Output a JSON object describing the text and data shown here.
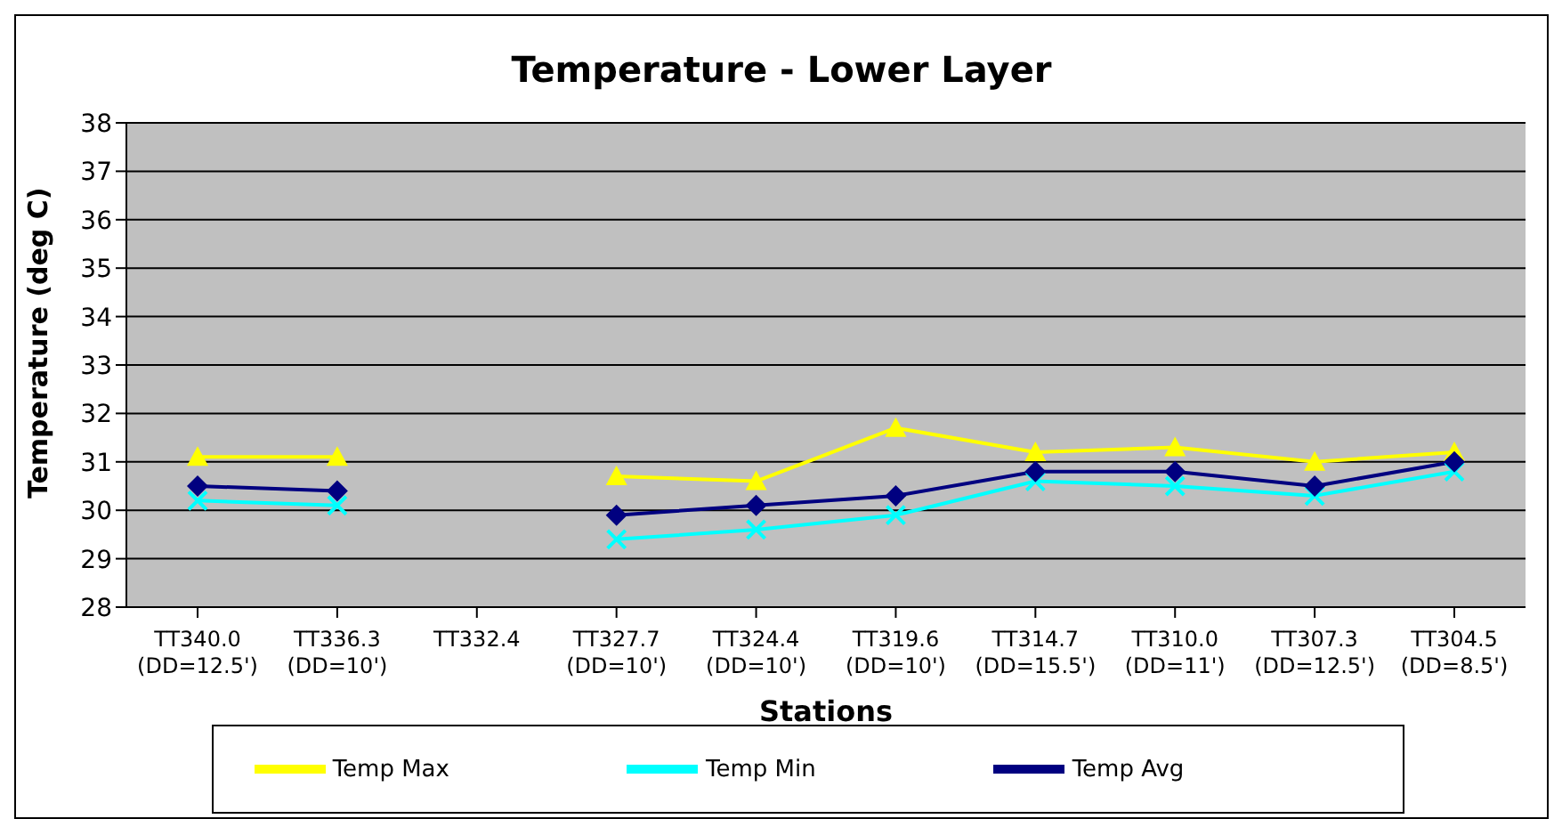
{
  "chart_data": {
    "type": "line",
    "title": "Temperature - Lower Layer",
    "xlabel": "Stations",
    "ylabel": "Temperature (deg C)",
    "categories": [
      "TT340.0\n(DD=12.5')",
      "TT336.3\n(DD=10')",
      "TT332.4",
      "TT327.7\n(DD=10')",
      "TT324.4\n(DD=10')",
      "TT319.6\n(DD=10')",
      "TT314.7\n(DD=15.5')",
      "TT310.0\n(DD=11')",
      "TT307.3\n(DD=12.5')",
      "TT304.5\n(DD=8.5')"
    ],
    "series": [
      {
        "name": "Temp Max",
        "color": "#ffff00",
        "marker": "triangle",
        "values": [
          31.1,
          31.1,
          null,
          30.7,
          30.6,
          31.7,
          31.2,
          31.3,
          31.0,
          31.2
        ]
      },
      {
        "name": "Temp Min",
        "color": "#00ffff",
        "marker": "cross",
        "values": [
          30.2,
          30.1,
          null,
          29.4,
          29.6,
          29.9,
          30.6,
          30.5,
          30.3,
          30.8
        ]
      },
      {
        "name": "Temp Avg",
        "color": "#000080",
        "marker": "diamond",
        "values": [
          30.5,
          30.4,
          null,
          29.9,
          30.1,
          30.3,
          30.8,
          30.8,
          30.5,
          31.0
        ]
      }
    ],
    "ylim": [
      28,
      38
    ],
    "yticks": [
      28,
      29,
      30,
      31,
      32,
      33,
      34,
      35,
      36,
      37,
      38
    ],
    "grid": "y",
    "legend": "bottom"
  }
}
